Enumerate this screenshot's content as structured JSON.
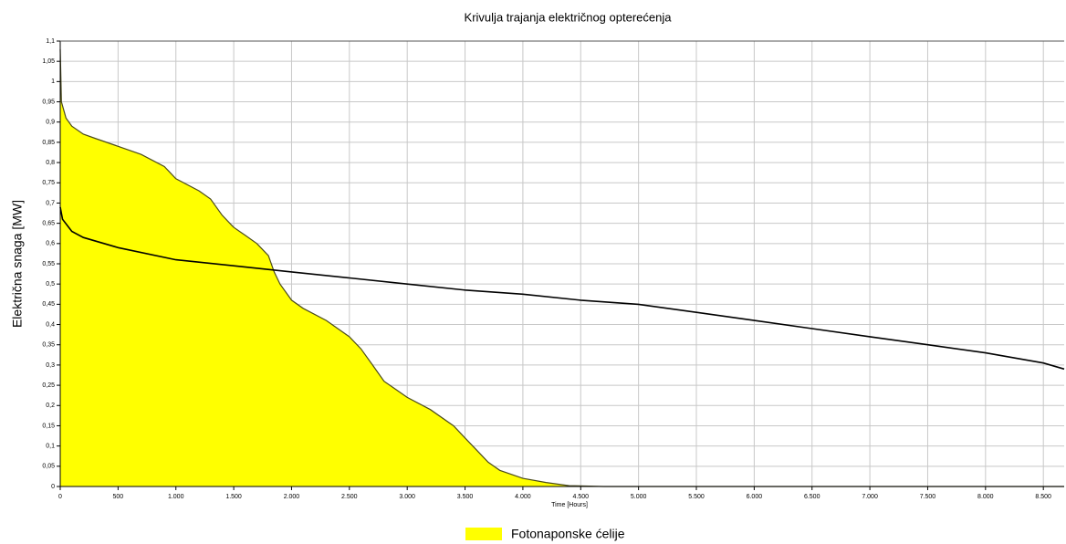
{
  "chart_data": {
    "type": "area",
    "title": "Krivulja trajanja električnog opterećenja",
    "y_label": "Električna snaga [MW]",
    "x_label": "Time [Hours]",
    "series": [
      {
        "name": "Fotonaponske ćelije",
        "color": "#ffff00",
        "line_color": "#4a4a1a",
        "fill": true,
        "x": [
          0,
          10,
          50,
          100,
          200,
          300,
          500,
          700,
          900,
          1000,
          1200,
          1300,
          1400,
          1500,
          1600,
          1700,
          1800,
          1850,
          1900,
          2000,
          2100,
          2300,
          2400,
          2500,
          2600,
          2700,
          2800,
          2900,
          3000,
          3200,
          3400,
          3500,
          3600,
          3700,
          3800,
          4000,
          4200,
          4400,
          4700,
          8680
        ],
        "values": [
          1.08,
          0.95,
          0.91,
          0.89,
          0.87,
          0.86,
          0.84,
          0.82,
          0.79,
          0.76,
          0.73,
          0.71,
          0.67,
          0.64,
          0.62,
          0.6,
          0.57,
          0.53,
          0.5,
          0.46,
          0.44,
          0.41,
          0.39,
          0.37,
          0.34,
          0.3,
          0.26,
          0.24,
          0.22,
          0.19,
          0.15,
          0.12,
          0.09,
          0.06,
          0.04,
          0.02,
          0.01,
          0.002,
          0,
          0
        ]
      },
      {
        "color": "#000000",
        "fill": false,
        "x": [
          0,
          20,
          100,
          200,
          500,
          1000,
          1500,
          2000,
          2500,
          3000,
          3500,
          4000,
          4500,
          5000,
          5500,
          6000,
          6500,
          7000,
          7500,
          8000,
          8500,
          8680
        ],
        "values": [
          0.69,
          0.66,
          0.63,
          0.615,
          0.59,
          0.56,
          0.545,
          0.53,
          0.515,
          0.5,
          0.485,
          0.475,
          0.46,
          0.45,
          0.43,
          0.41,
          0.39,
          0.37,
          0.35,
          0.33,
          0.305,
          0.29
        ]
      }
    ],
    "xlim": [
      0,
      8680
    ],
    "ylim": [
      0,
      1.1
    ],
    "xticks": [
      0,
      500,
      {
        "value": 1000,
        "label": "1.000"
      },
      {
        "value": 1500,
        "label": "1.500"
      },
      {
        "value": 2000,
        "label": "2.000"
      },
      {
        "value": 2500,
        "label": "2.500"
      },
      {
        "value": 3000,
        "label": "3.000"
      },
      {
        "value": 3500,
        "label": "3.500"
      },
      {
        "value": 4000,
        "label": "4.000"
      },
      {
        "value": 4500,
        "label": "4.500"
      },
      {
        "value": 5000,
        "label": "5.000"
      },
      {
        "value": 5500,
        "label": "5.500"
      },
      {
        "value": 6000,
        "label": "6.000"
      },
      {
        "value": 6500,
        "label": "6.500"
      },
      {
        "value": 7000,
        "label": "7.000"
      },
      {
        "value": 7500,
        "label": "7.500"
      },
      {
        "value": 8000,
        "label": "8.000"
      },
      {
        "value": 8500,
        "label": "8.500"
      }
    ],
    "yticks": [
      0,
      {
        "value": 0.05,
        "label": "0,05"
      },
      {
        "value": 0.1,
        "label": "0,1"
      },
      {
        "value": 0.15,
        "label": "0,15"
      },
      {
        "value": 0.2,
        "label": "0,2"
      },
      {
        "value": 0.25,
        "label": "0,25"
      },
      {
        "value": 0.3,
        "label": "0,3"
      },
      {
        "value": 0.35,
        "label": "0,35"
      },
      {
        "value": 0.4,
        "label": "0,4"
      },
      {
        "value": 0.45,
        "label": "0,45"
      },
      {
        "value": 0.5,
        "label": "0,5"
      },
      {
        "value": 0.55,
        "label": "0,55"
      },
      {
        "value": 0.6,
        "label": "0,6"
      },
      {
        "value": 0.65,
        "label": "0,65"
      },
      {
        "value": 0.7,
        "label": "0,7"
      },
      {
        "value": 0.75,
        "label": "0,75"
      },
      {
        "value": 0.8,
        "label": "0,8"
      },
      {
        "value": 0.85,
        "label": "0,85"
      },
      {
        "value": 0.9,
        "label": "0,9"
      },
      {
        "value": 0.95,
        "label": "0,95"
      },
      1,
      {
        "value": 1.05,
        "label": "1,05"
      },
      {
        "value": 1.1,
        "label": "1,1"
      }
    ],
    "grid": true,
    "legend": "bottom"
  }
}
